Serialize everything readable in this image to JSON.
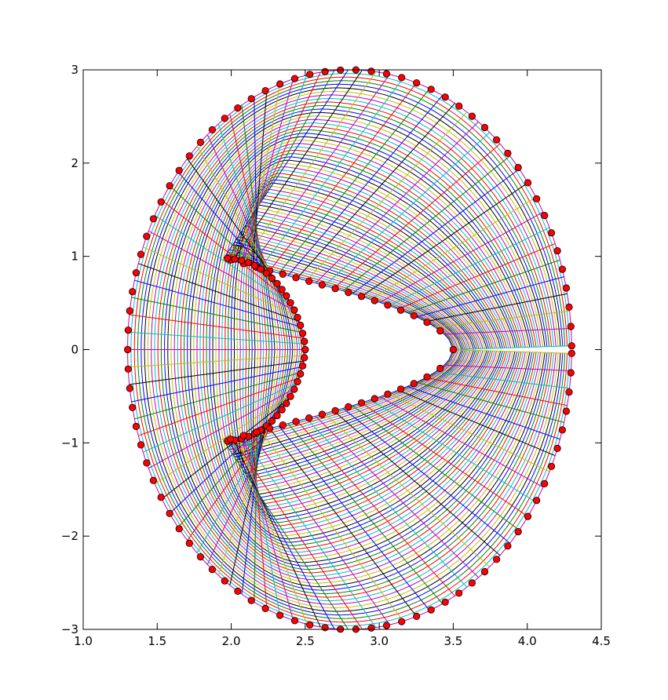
{
  "chart_data": {
    "type": "line",
    "title": "",
    "xlabel": "",
    "ylabel": "",
    "xlim": [
      1.0,
      4.5
    ],
    "ylim": [
      -3,
      3
    ],
    "grid": false,
    "legend": "none",
    "xticks": [
      "1.0",
      "1.5",
      "2.0",
      "2.5",
      "3.0",
      "3.5",
      "4.0",
      "4.5"
    ],
    "yticks": [
      "3",
      "2",
      "1",
      "0",
      "−1",
      "−2",
      "−3"
    ],
    "mesh": {
      "description_free": true,
      "inner_boundary": {
        "leading_x": 2.5,
        "tip_x": 3.5,
        "tip_y": 0,
        "max_half_height": 0.98,
        "max_half_height_x": 1.95
      },
      "outer_boundary": {
        "center_x": 2.8,
        "center_y": 0,
        "radius_x": 1.5,
        "radius_y": 3.0
      },
      "cut_line": {
        "x_start": 3.5,
        "x_end": 4.3,
        "y_gap": 0.08
      },
      "radial_lines": 100,
      "wrap_lines": 60,
      "line_colors": [
        "#0000ff",
        "#008000",
        "#ff0000",
        "#00bfbf",
        "#bf00bf",
        "#bfbf00",
        "#000000"
      ],
      "marker_color": "#ff0000",
      "marker_edge": "#000000",
      "inner_markers": 70,
      "outer_markers": 90
    }
  }
}
